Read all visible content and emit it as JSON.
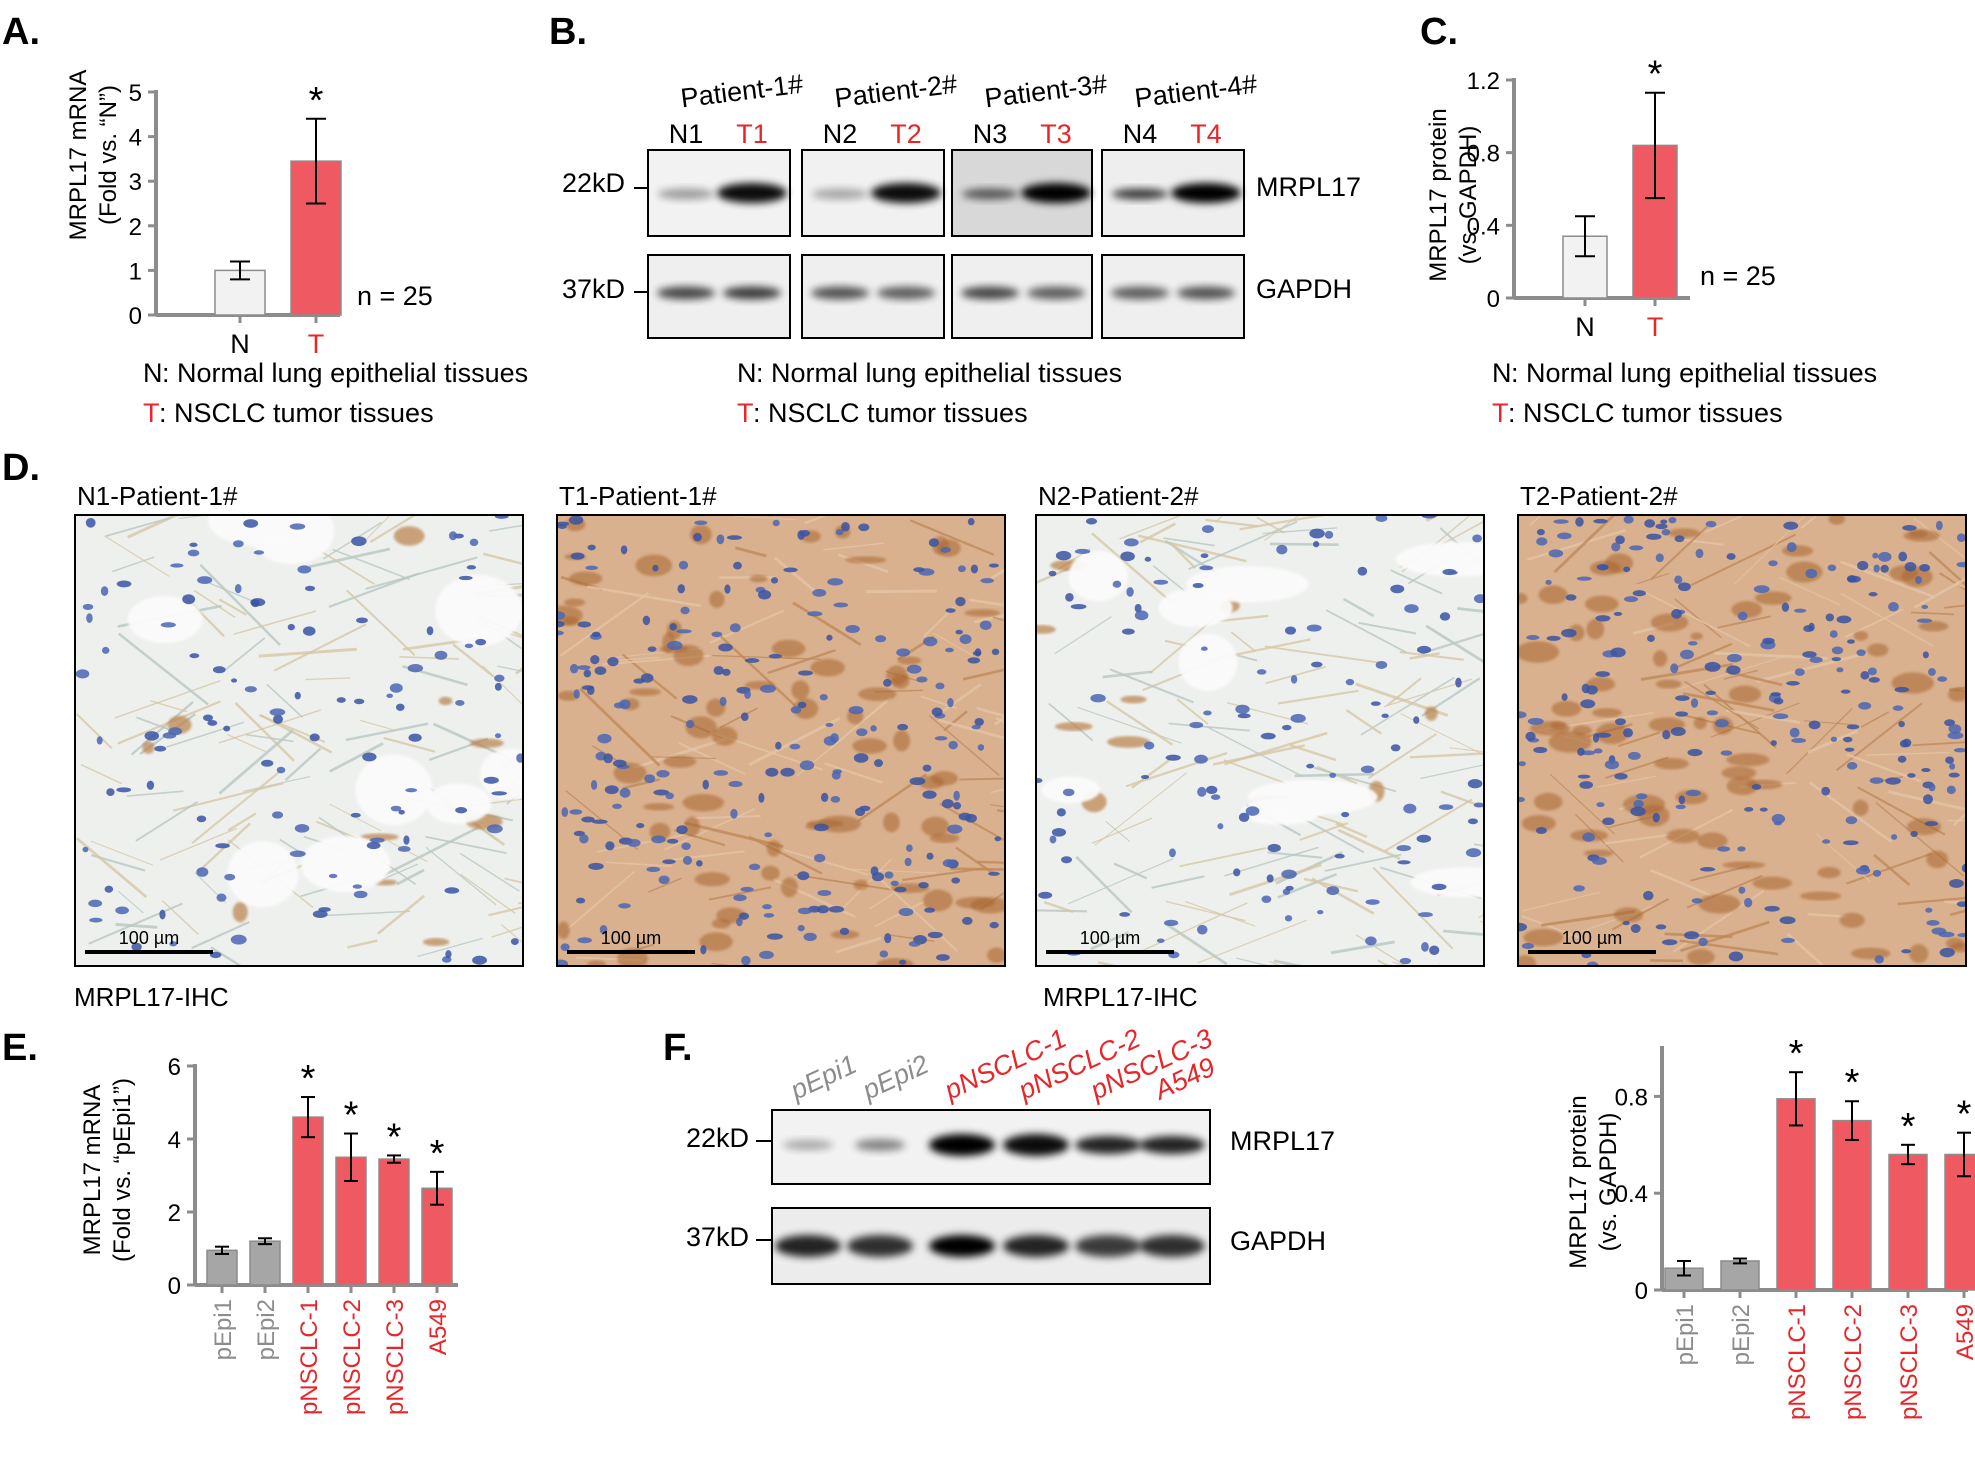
{
  "panels": {
    "A": {
      "letter": "A.",
      "ylabel_line1": "MRPL17 mRNA",
      "ylabel_line2": "(Fold vs. “N”)",
      "n_text": "n = 25",
      "legend_N_key": "N",
      "legend_N_text": ": Normal lung epithelial tissues",
      "legend_T_key": "T",
      "legend_T_text": ": NSCLC tumor tissues"
    },
    "B": {
      "letter": "B.",
      "patients": [
        "Patient-1#",
        "Patient-2#",
        "Patient-3#",
        "Patient-4#"
      ],
      "lanes": [
        {
          "label": "N1",
          "color": "#000000"
        },
        {
          "label": "T1",
          "color": "#e8262a"
        },
        {
          "label": "N2",
          "color": "#000000"
        },
        {
          "label": "T2",
          "color": "#e8262a"
        },
        {
          "label": "N3",
          "color": "#000000"
        },
        {
          "label": "T3",
          "color": "#e8262a"
        },
        {
          "label": "N4",
          "color": "#000000"
        },
        {
          "label": "T4",
          "color": "#e8262a"
        }
      ],
      "mw_top": "22kD",
      "mw_bottom": "37kD",
      "protein_top": "MRPL17",
      "protein_bottom": "GAPDH",
      "legend_N_key": "N",
      "legend_N_text": ": Normal lung epithelial tissues",
      "legend_T_key": "T",
      "legend_T_text": ": NSCLC tumor tissues"
    },
    "C": {
      "letter": "C.",
      "ylabel_line1": "MRPL17 protein",
      "ylabel_line2": "(vs. GAPDH)",
      "n_text": "n = 25",
      "legend_N_key": "N",
      "legend_N_text": ": Normal lung epithelial tissues",
      "legend_T_key": "T",
      "legend_T_text": ": NSCLC tumor tissues"
    },
    "D": {
      "letter": "D.",
      "images": [
        {
          "title": "N1-Patient-1#",
          "scale": "100 µm",
          "type": "normal"
        },
        {
          "title": "T1-Patient-1#",
          "scale": "100 µm",
          "type": "tumor"
        },
        {
          "title": "N2-Patient-2#",
          "scale": "100 µm",
          "type": "normal"
        },
        {
          "title": "T2-Patient-2#",
          "scale": "100 µm",
          "type": "tumor"
        }
      ],
      "caption_left": "MRPL17-IHC",
      "caption_right": "MRPL17-IHC"
    },
    "E": {
      "letter": "E.",
      "ylabel_line1": "MRPL17 mRNA",
      "ylabel_line2": "(Fold vs. “pEpi1”)"
    },
    "F": {
      "letter": "F.",
      "lanes": [
        {
          "label": "pEpi1",
          "color": "#8c8c8c"
        },
        {
          "label": "pEpi2",
          "color": "#8c8c8c"
        },
        {
          "label": "pNSCLC-1",
          "color": "#e8262a"
        },
        {
          "label": "pNSCLC-2",
          "color": "#e8262a"
        },
        {
          "label": "pNSCLC-3",
          "color": "#e8262a"
        },
        {
          "label": "A549",
          "color": "#e8262a"
        }
      ],
      "mw_top": "22kD",
      "mw_bottom": "37kD",
      "protein_top": "MRPL17",
      "protein_bottom": "GAPDH",
      "ylabel_line1": "MRPL17 protein",
      "ylabel_line2": "(vs. GAPDH)"
    }
  },
  "colors": {
    "normal_bar": "#f2f2f2",
    "tumor_bar": "#ef5a62",
    "gray_bar": "#a6a6a6",
    "red_text": "#e8262a",
    "gray_text": "#8c8c8c",
    "axis": "#8c8c8c"
  },
  "chart_data": [
    {
      "id": "A",
      "type": "bar",
      "categories": [
        "N",
        "T"
      ],
      "category_colors": [
        "#000000",
        "#e8262a"
      ],
      "values": [
        1.0,
        3.45
      ],
      "errors": [
        0.2,
        0.95
      ],
      "significance": [
        "",
        "*"
      ],
      "bar_colors": [
        "#f2f2f2",
        "#ef5a62"
      ],
      "ylim": [
        0,
        5
      ],
      "yticks": [
        "0",
        "1",
        "2",
        "3",
        "4",
        "5"
      ]
    },
    {
      "id": "C",
      "type": "bar",
      "categories": [
        "N",
        "T"
      ],
      "category_colors": [
        "#000000",
        "#e8262a"
      ],
      "values": [
        0.34,
        0.84
      ],
      "errors": [
        0.11,
        0.29
      ],
      "significance": [
        "",
        "*"
      ],
      "bar_colors": [
        "#f2f2f2",
        "#ef5a62"
      ],
      "ylim": [
        0,
        1.2
      ],
      "yticks": [
        "0",
        "0.4",
        "0.8",
        "1.2"
      ]
    },
    {
      "id": "E",
      "type": "bar",
      "categories": [
        "pEpi1",
        "pEpi2",
        "pNSCLC-1",
        "pNSCLC-2",
        "pNSCLC-3",
        "A549"
      ],
      "category_colors": [
        "#8c8c8c",
        "#8c8c8c",
        "#e8262a",
        "#e8262a",
        "#e8262a",
        "#e8262a"
      ],
      "values": [
        0.95,
        1.2,
        4.6,
        3.5,
        3.45,
        2.65
      ],
      "errors": [
        0.1,
        0.08,
        0.55,
        0.65,
        0.1,
        0.45
      ],
      "significance": [
        "",
        "",
        "*",
        "*",
        "*",
        "*"
      ],
      "bar_colors": [
        "#a6a6a6",
        "#a6a6a6",
        "#ef5a62",
        "#ef5a62",
        "#ef5a62",
        "#ef5a62"
      ],
      "ylim": [
        0,
        6
      ],
      "yticks": [
        "0",
        "2",
        "4",
        "6"
      ]
    },
    {
      "id": "F",
      "type": "bar",
      "categories": [
        "pEpi1",
        "pEpi2",
        "pNSCLC-1",
        "pNSCLC-2",
        "pNSCLC-3",
        "A549"
      ],
      "category_colors": [
        "#8c8c8c",
        "#8c8c8c",
        "#e8262a",
        "#e8262a",
        "#e8262a",
        "#e8262a"
      ],
      "values": [
        0.09,
        0.12,
        0.79,
        0.7,
        0.56,
        0.56
      ],
      "errors": [
        0.03,
        0.01,
        0.11,
        0.08,
        0.04,
        0.09
      ],
      "significance": [
        "",
        "",
        "*",
        "*",
        "*",
        "*"
      ],
      "bar_colors": [
        "#a6a6a6",
        "#a6a6a6",
        "#ef5a62",
        "#ef5a62",
        "#ef5a62",
        "#ef5a62"
      ],
      "ylim": [
        0,
        1.0
      ],
      "yticks": [
        "0",
        "0.4",
        "0.8"
      ]
    }
  ]
}
